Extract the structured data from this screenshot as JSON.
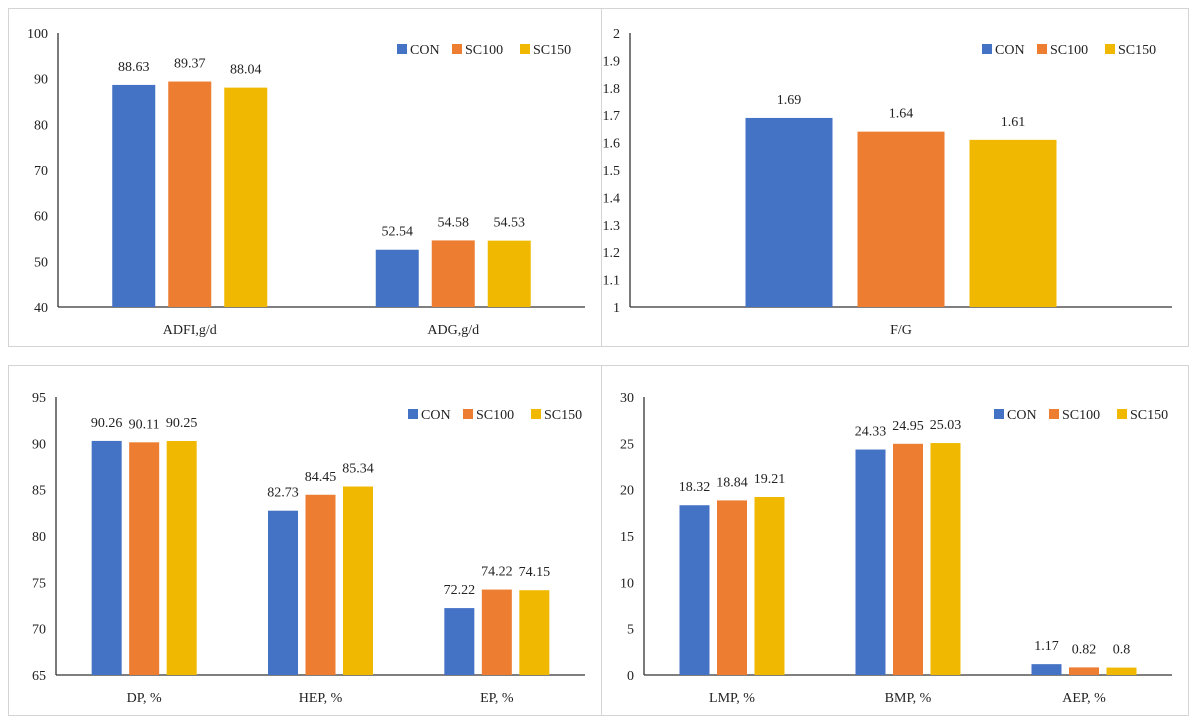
{
  "colors": {
    "CON": "#4472C4",
    "SC100": "#ED7D31",
    "SC150": "#F0B800"
  },
  "chart_data": [
    {
      "type": "bar",
      "categories": [
        "ADFI,g/d",
        "ADG,g/d"
      ],
      "series": [
        {
          "name": "CON",
          "values": [
            88.63,
            52.54
          ]
        },
        {
          "name": "SC100",
          "values": [
            89.37,
            54.58
          ]
        },
        {
          "name": "SC150",
          "values": [
            88.04,
            54.53
          ]
        }
      ],
      "ylim": [
        40,
        100
      ],
      "yticks": [
        "40",
        "50",
        "60",
        "70",
        "80",
        "90",
        "100"
      ],
      "grid": false,
      "legend": "top-right"
    },
    {
      "type": "bar",
      "categories": [
        "F/G"
      ],
      "series": [
        {
          "name": "CON",
          "values": [
            1.69
          ]
        },
        {
          "name": "SC100",
          "values": [
            1.64
          ]
        },
        {
          "name": "SC150",
          "values": [
            1.61
          ]
        }
      ],
      "ylim": [
        1,
        2
      ],
      "yticks": [
        "1",
        "1.1",
        "1.2",
        "1.3",
        "1.4",
        "1.5",
        "1.6",
        "1.7",
        "1.8",
        "1.9",
        "2"
      ],
      "grid": false,
      "legend": "top-right"
    },
    {
      "type": "bar",
      "categories": [
        "DP, %",
        "HEP, %",
        "EP, %"
      ],
      "series": [
        {
          "name": "CON",
          "values": [
            90.26,
            82.73,
            72.22
          ]
        },
        {
          "name": "SC100",
          "values": [
            90.11,
            84.45,
            74.22
          ]
        },
        {
          "name": "SC150",
          "values": [
            90.25,
            85.34,
            74.15
          ]
        }
      ],
      "ylim": [
        65,
        95
      ],
      "yticks": [
        "65",
        "70",
        "75",
        "80",
        "85",
        "90",
        "95"
      ],
      "grid": false,
      "legend": "top-right"
    },
    {
      "type": "bar",
      "categories": [
        "LMP, %",
        "BMP, %",
        "AEP, %"
      ],
      "series": [
        {
          "name": "CON",
          "values": [
            18.32,
            24.33,
            1.17
          ]
        },
        {
          "name": "SC100",
          "values": [
            18.84,
            24.95,
            0.82
          ]
        },
        {
          "name": "SC150",
          "values": [
            19.21,
            25.03,
            0.8
          ]
        }
      ],
      "ylim": [
        0,
        30
      ],
      "yticks": [
        "0",
        "5",
        "10",
        "15",
        "20",
        "25",
        "30"
      ],
      "grid": false,
      "legend": "top-right"
    }
  ]
}
